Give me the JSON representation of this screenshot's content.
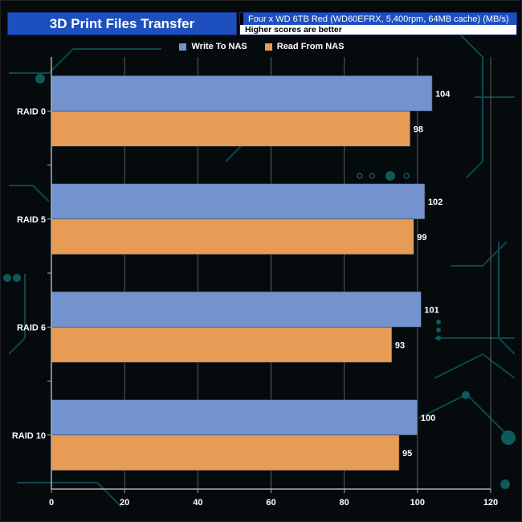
{
  "header": {
    "title": "3D Print Files Transfer",
    "subtitle": "Four x WD 6TB Red (WD60EFRX, 5,400rpm, 64MB cache) (MB/s)",
    "note": "Higher scores are better"
  },
  "chart_data": {
    "type": "bar",
    "orientation": "horizontal",
    "categories": [
      "RAID 0",
      "RAID 5",
      "RAID 6",
      "RAID 10"
    ],
    "series": [
      {
        "name": "Write To NAS",
        "values": [
          104,
          102,
          101,
          100
        ],
        "color": "#7393cf"
      },
      {
        "name": "Read From NAS",
        "values": [
          98,
          99,
          93,
          95
        ],
        "color": "#e79c55"
      }
    ],
    "xlim": [
      0,
      120
    ],
    "xticks": [
      0,
      20,
      40,
      60,
      80,
      100,
      120
    ],
    "grid": true,
    "legend": "top-center",
    "colors": {
      "title_bg": "#1e4fbf",
      "background": "#050a0c",
      "circuit": "#0d5a5a"
    }
  }
}
